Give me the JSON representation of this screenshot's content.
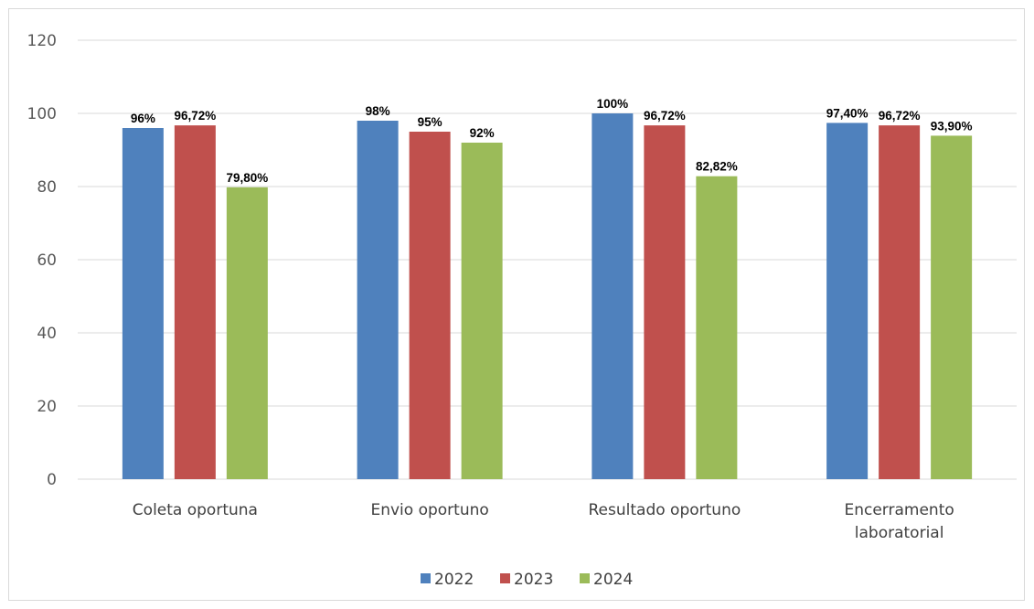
{
  "chart_data": {
    "type": "bar",
    "categories": [
      "Coleta oportuna",
      "Envio oportuno",
      "Resultado oportuno",
      "Encerramento laboratorial"
    ],
    "category_lines": [
      [
        "Coleta oportuna"
      ],
      [
        "Envio oportuno"
      ],
      [
        "Resultado oportuno"
      ],
      [
        "Encerramento",
        "laboratorial"
      ]
    ],
    "series": [
      {
        "name": "2022",
        "color": "#4f81bd",
        "values": [
          96,
          98,
          100,
          97.4
        ],
        "labels": [
          "96%",
          "98%",
          "100%",
          "97,40%"
        ]
      },
      {
        "name": "2023",
        "color": "#c0504d",
        "values": [
          96.72,
          95,
          96.72,
          96.72
        ],
        "labels": [
          "96,72%",
          "95%",
          "96,72%",
          "96,72%"
        ]
      },
      {
        "name": "2024",
        "color": "#9bbb59",
        "values": [
          79.8,
          92,
          82.82,
          93.9
        ],
        "labels": [
          "79,80%",
          "92%",
          "82,82%",
          "93,90%"
        ]
      }
    ],
    "ylim": [
      0,
      120
    ],
    "yticks": [
      0,
      20,
      40,
      60,
      80,
      100,
      120
    ],
    "grid": true,
    "legend": "bottom",
    "title": "",
    "xlabel": "",
    "ylabel": ""
  }
}
